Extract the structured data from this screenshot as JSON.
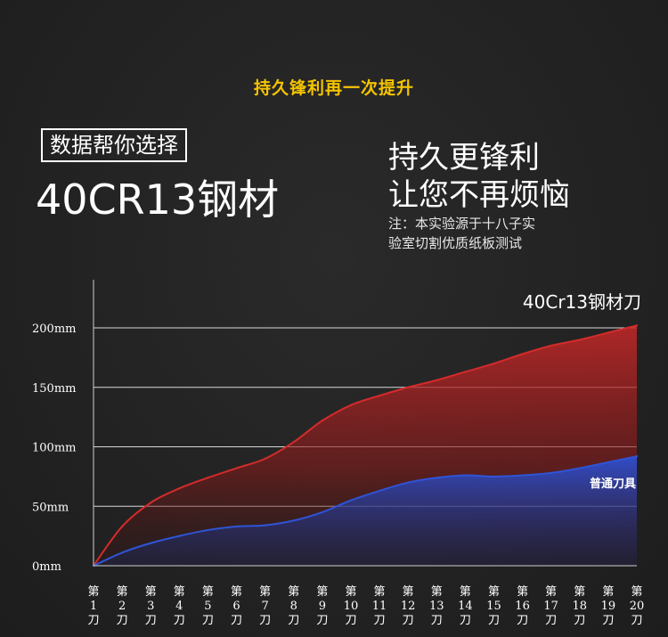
{
  "header": {
    "title": "持久锋利再一次提升"
  },
  "intro": {
    "boxed_label": "数据帮你选择",
    "material": "40CR13钢材",
    "slogan_line1": "持久更锋利",
    "slogan_line2": "让您不再烦恼",
    "note_line1": "注：本实验源于十八子实",
    "note_line2": "验室切割优质纸板测试"
  },
  "colors": {
    "headline": "#f5c400",
    "series_red": "#d42b2b",
    "series_blue": "#2f54d6",
    "background": "#212121"
  },
  "chart_data": {
    "type": "area",
    "categories": [
      "第1刀",
      "第2刀",
      "第3刀",
      "第4刀",
      "第5刀",
      "第6刀",
      "第7刀",
      "第8刀",
      "第9刀",
      "第10刀",
      "第11刀",
      "第12刀",
      "第13刀",
      "第14刀",
      "第15刀",
      "第16刀",
      "第17刀",
      "第18刀",
      "第19刀",
      "第20刀"
    ],
    "category_parts": [
      [
        "第",
        "1",
        "刀"
      ],
      [
        "第",
        "2",
        "刀"
      ],
      [
        "第",
        "3",
        "刀"
      ],
      [
        "第",
        "4",
        "刀"
      ],
      [
        "第",
        "5",
        "刀"
      ],
      [
        "第",
        "6",
        "刀"
      ],
      [
        "第",
        "7",
        "刀"
      ],
      [
        "第",
        "8",
        "刀"
      ],
      [
        "第",
        "9",
        "刀"
      ],
      [
        "第",
        "10",
        "刀"
      ],
      [
        "第",
        "11",
        "刀"
      ],
      [
        "第",
        "12",
        "刀"
      ],
      [
        "第",
        "13",
        "刀"
      ],
      [
        "第",
        "14",
        "刀"
      ],
      [
        "第",
        "15",
        "刀"
      ],
      [
        "第",
        "16",
        "刀"
      ],
      [
        "第",
        "17",
        "刀"
      ],
      [
        "第",
        "18",
        "刀"
      ],
      [
        "第",
        "19",
        "刀"
      ],
      [
        "第",
        "20",
        "刀"
      ]
    ],
    "y_ticks": [
      "0mm",
      "50mm",
      "100mm",
      "150mm",
      "200mm"
    ],
    "y_tick_values": [
      0,
      50,
      100,
      150,
      200
    ],
    "ylim": [
      0,
      240
    ],
    "grid": true,
    "series": [
      {
        "name": "40Cr13钢材刀",
        "color": "#d42b2b",
        "values": [
          0,
          33,
          53,
          65,
          74,
          82,
          90,
          104,
          122,
          135,
          143,
          150,
          156,
          163,
          170,
          178,
          185,
          190,
          196,
          202
        ]
      },
      {
        "name": "普通刀具",
        "color": "#2f54d6",
        "values": [
          0,
          11,
          19,
          25,
          30,
          33,
          34,
          38,
          45,
          55,
          63,
          70,
          74,
          76,
          75,
          76,
          78,
          82,
          87,
          92
        ]
      }
    ]
  }
}
